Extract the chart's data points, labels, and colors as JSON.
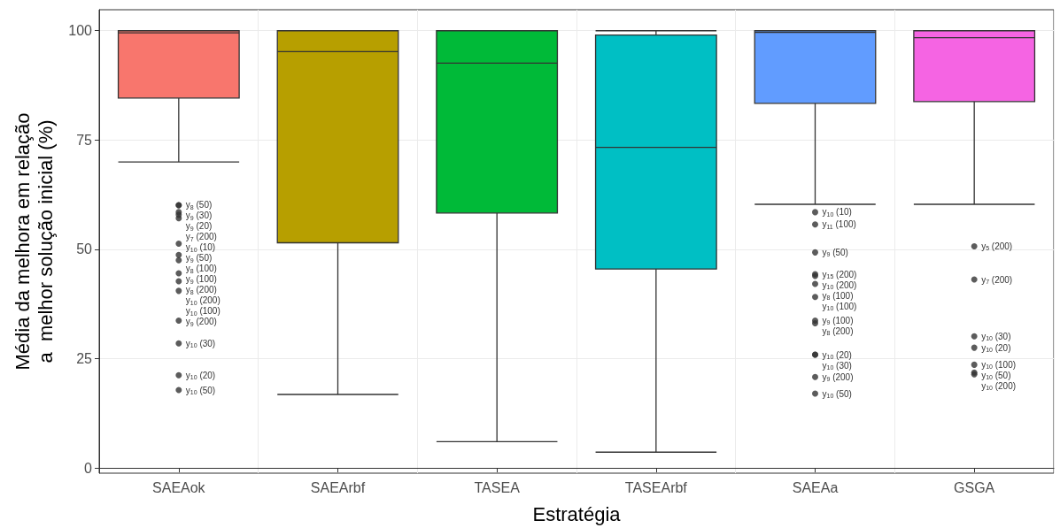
{
  "chart_data": {
    "type": "box",
    "xlabel": "Estratégia",
    "ylabel": "Média da melhora em relação\na  melhor solução inicial (%)",
    "categories": [
      "SAEAok",
      "SAEArbf",
      "TASEA",
      "TASEArbf",
      "SAEAa",
      "GSGA"
    ],
    "colors": [
      "#f8766d",
      "#b79f00",
      "#00ba38",
      "#00bfc4",
      "#619cff",
      "#f564e3"
    ],
    "boxes": [
      {
        "low": 70,
        "q1": 84.6,
        "median": 99.5,
        "q3": 100,
        "high": 100,
        "outliers": [
          60.1,
          60.1,
          58.5,
          57.9,
          57.1,
          51.3,
          48.7,
          47.5,
          44.5,
          42.7,
          40.5,
          33.7,
          28.5,
          21.2,
          17.8
        ]
      },
      {
        "low": 16.8,
        "q1": 51.5,
        "median": 95.2,
        "q3": 100,
        "high": 100
      },
      {
        "low": 6,
        "q1": 58.3,
        "median": 92.6,
        "q3": 100,
        "high": 100
      },
      {
        "low": 3.6,
        "q1": 45.5,
        "median": 73.3,
        "q3": 99,
        "high": 100
      },
      {
        "low": 60.3,
        "q1": 83.4,
        "median": 99.6,
        "q3": 100,
        "high": 100,
        "outliers": [
          58.5,
          55.7,
          49.3,
          44.3,
          43.9,
          42.1,
          39.1,
          33.7,
          33.1,
          25.9,
          25.9,
          20.8,
          17
        ]
      },
      {
        "low": 60.3,
        "q1": 83.8,
        "median": 98.4,
        "q3": 100,
        "high": 100,
        "outliers": [
          50.7,
          43.1,
          30.1,
          27.5,
          23.6,
          21.8,
          21.4
        ]
      }
    ],
    "ylim": [
      -1.2,
      104.8
    ],
    "yticks": [
      0,
      25,
      50,
      75,
      100
    ],
    "grid": true,
    "annotations": [
      "y$_{8}$ (50)",
      "y$_{9}$ (30)",
      "y$_{9}$ (20)",
      "y$_{7}$ (200)",
      "y$_{10}$ (10)",
      "y$_{9}$ (50)",
      "y$_{8}$ (100)",
      "y$_{9}$ (100)",
      "y$_{8}$ (200)",
      "y$_{10}$ (200)",
      "y$_{10}$ (100)",
      "y$_{9}$ (200)",
      "y$_{10}$ (30)",
      "y$_{10}$ (20)",
      "y$_{10}$ (50)",
      "y$_{10}$ (10)",
      "y$_{11}$ (100)",
      "y$_{9}$ (50)",
      "y$_{15}$ (200)",
      "y$_{10}$ (200)",
      "y$_{8}$ (100)",
      "y$_{10}$ (100)",
      "y$_{9}$ (100)",
      "y$_{8}$ (200)",
      "y$_{10}$ (20)",
      "y$_{10}$ (30)",
      "y$_{9}$ (200)",
      "y$_{10}$ (50)",
      "y$_{5}$ (200)",
      "y$_{7}$ (200)",
      "y$_{10}$ (30)",
      "y$_{10}$ (20)",
      "y$_{10}$ (100)",
      "y$_{10}$ (50)",
      "y$_{10}$ (200)"
    ]
  }
}
